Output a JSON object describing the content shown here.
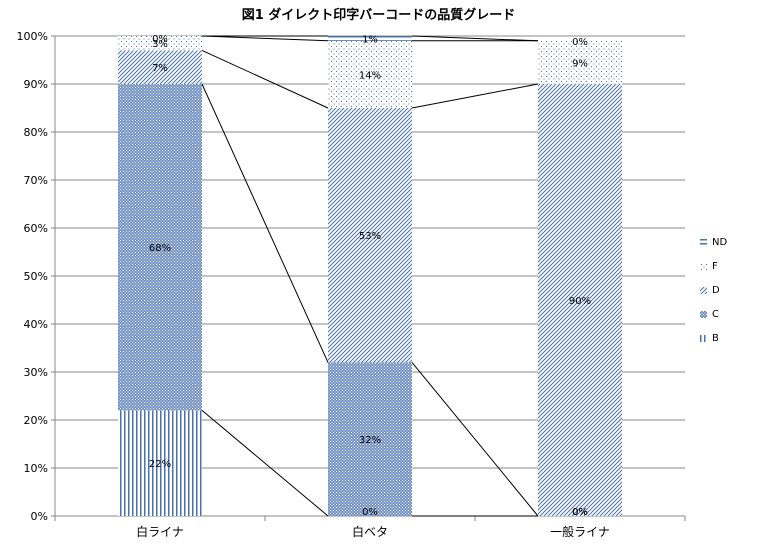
{
  "chart_data": {
    "type": "bar",
    "stacked": true,
    "percent_stacked": true,
    "title": "図1 ダイレクト印字バーコードの品質グレード",
    "categories": [
      "白ライナ",
      "白ベタ",
      "一般ライナ"
    ],
    "ylim": [
      0,
      100
    ],
    "yticks": [
      "0%",
      "10%",
      "20%",
      "30%",
      "40%",
      "50%",
      "60%",
      "70%",
      "80%",
      "90%",
      "100%"
    ],
    "grid": true,
    "legend_position": "right",
    "series_lines": true,
    "series": [
      {
        "name": "B",
        "values": [
          22,
          0,
          0
        ],
        "labels": [
          "22%",
          "0%",
          "0%"
        ],
        "color": "#4a72b0",
        "pattern": "vertical"
      },
      {
        "name": "C",
        "values": [
          68,
          32,
          0
        ],
        "labels": [
          "68%",
          "32%",
          "0%"
        ],
        "color": "#4a72b0",
        "pattern": "dense"
      },
      {
        "name": "D",
        "values": [
          7,
          53,
          90
        ],
        "labels": [
          "7%",
          "53%",
          "90%"
        ],
        "color": "#4a72b0",
        "pattern": "diagonal"
      },
      {
        "name": "F",
        "values": [
          3,
          14,
          9
        ],
        "labels": [
          "3%",
          "14%",
          "9%"
        ],
        "color": "#4a72b0",
        "pattern": "dots"
      },
      {
        "name": "ND",
        "values": [
          0,
          1,
          0
        ],
        "labels": [
          "0%",
          "1%",
          "0%"
        ],
        "color": "#4a72b0",
        "pattern": "horizontal"
      }
    ]
  }
}
